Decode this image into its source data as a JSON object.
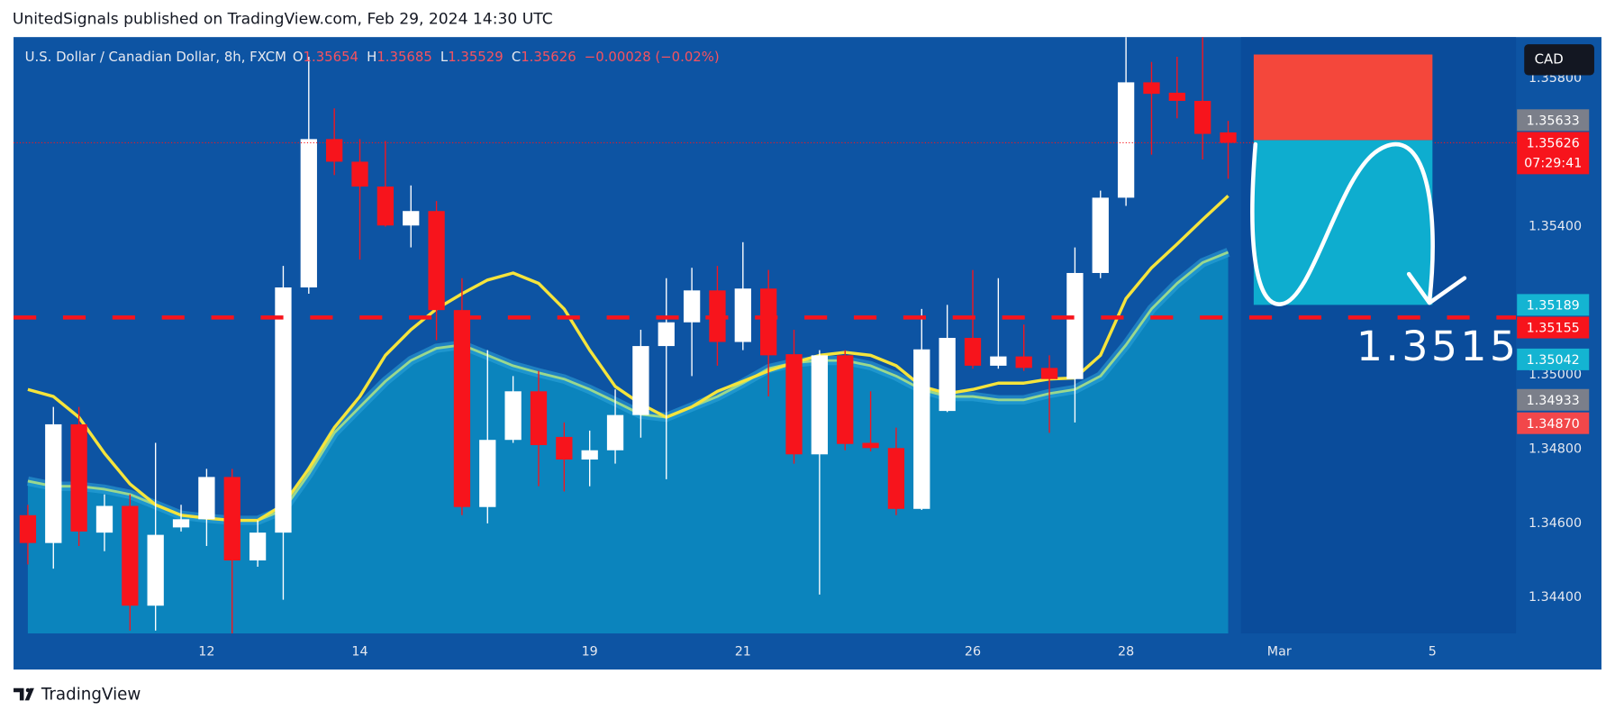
{
  "header": "UnitedSignals published on TradingView.com, Feb 29, 2024 14:30 UTC",
  "footer": "TradingView",
  "chart_data": {
    "type": "candlestick",
    "title": "U.S. Dollar / Canadian Dollar, 8h, FXCM",
    "ohlc_labels": [
      "O",
      "H",
      "L",
      "C"
    ],
    "change": "−0.00028 (−0.02%)",
    "currency": "CAD",
    "up_color": "#ffffff",
    "down_color": "#f7141c",
    "open": [
      1.34622,
      1.34547,
      1.34867,
      1.34575,
      1.34647,
      1.34378,
      1.34589,
      1.34611,
      1.34725,
      1.345,
      1.34575,
      1.35236,
      1.35636,
      1.35575,
      1.35508,
      1.35403,
      1.35442,
      1.35175,
      1.34644,
      1.34825,
      1.34956,
      1.34833,
      1.34772,
      1.34797,
      1.34892,
      1.35078,
      1.35142,
      1.35228,
      1.35089,
      1.35233,
      1.35056,
      1.34786,
      1.35053,
      1.34817,
      1.34803,
      1.34639,
      1.34903,
      1.351,
      1.35025,
      1.3505,
      1.35019,
      1.34989,
      1.35275,
      1.35478,
      1.35789,
      1.35761,
      1.35739,
      1.35654
    ],
    "high": [
      1.3465,
      1.34914,
      1.34914,
      1.34678,
      1.34678,
      1.34817,
      1.3465,
      1.34747,
      1.34747,
      1.34608,
      1.35294,
      1.35858,
      1.35719,
      1.35636,
      1.35631,
      1.35511,
      1.35469,
      1.35261,
      1.35067,
      1.34997,
      1.35011,
      1.34872,
      1.3485,
      1.34961,
      1.35122,
      1.35261,
      1.35289,
      1.35294,
      1.35358,
      1.35283,
      1.35122,
      1.35067,
      1.35067,
      1.34956,
      1.34858,
      1.35178,
      1.35189,
      1.35283,
      1.35261,
      1.35136,
      1.35053,
      1.35344,
      1.35497,
      1.35911,
      1.35844,
      1.35858,
      1.35911,
      1.35685
    ],
    "low": [
      1.34489,
      1.34478,
      1.34539,
      1.34525,
      1.34311,
      1.34311,
      1.34578,
      1.34539,
      1.34303,
      1.34483,
      1.34394,
      1.35219,
      1.35539,
      1.35311,
      1.354,
      1.35344,
      1.35094,
      1.34622,
      1.346,
      1.34817,
      1.347,
      1.34686,
      1.347,
      1.34761,
      1.34831,
      1.34719,
      1.34997,
      1.35025,
      1.35067,
      1.34942,
      1.34761,
      1.34408,
      1.34797,
      1.34794,
      1.34622,
      1.34636,
      1.349,
      1.35017,
      1.35017,
      1.35011,
      1.34844,
      1.34872,
      1.35261,
      1.35456,
      1.35594,
      1.35692,
      1.35581,
      1.35529
    ],
    "close": [
      1.34547,
      1.34867,
      1.34578,
      1.34647,
      1.34378,
      1.34569,
      1.34611,
      1.34725,
      1.345,
      1.34575,
      1.35236,
      1.35636,
      1.35575,
      1.35508,
      1.35403,
      1.35442,
      1.35175,
      1.34644,
      1.34825,
      1.34956,
      1.34811,
      1.34772,
      1.34797,
      1.34892,
      1.35078,
      1.35142,
      1.35228,
      1.35089,
      1.35233,
      1.35053,
      1.34786,
      1.35053,
      1.34814,
      1.34803,
      1.34639,
      1.35069,
      1.351,
      1.35025,
      1.3505,
      1.35019,
      1.34989,
      1.35275,
      1.35478,
      1.35789,
      1.35758,
      1.35739,
      1.3565,
      1.35626
    ],
    "series": [
      {
        "color": "#f5e43c",
        "values": [
          1.34961,
          1.34942,
          1.34886,
          1.34789,
          1.34706,
          1.3465,
          1.34622,
          1.34614,
          1.34608,
          1.34608,
          1.3465,
          1.34747,
          1.34858,
          1.34942,
          1.35053,
          1.35122,
          1.35178,
          1.35219,
          1.35256,
          1.35275,
          1.35247,
          1.35178,
          1.35067,
          1.34969,
          1.34922,
          1.34886,
          1.34914,
          1.34956,
          1.34983,
          1.35011,
          1.35033,
          1.35053,
          1.35061,
          1.35053,
          1.35025,
          1.34969,
          1.3495,
          1.34961,
          1.34978,
          1.34978,
          1.34989,
          1.34992,
          1.35053,
          1.35206,
          1.35289,
          1.35353,
          1.35419,
          1.35483
        ]
      },
      {
        "color": "#9ad88e",
        "fill": "#0b84bd",
        "values": [
          1.34714,
          1.347,
          1.347,
          1.34692,
          1.34678,
          1.3465,
          1.34622,
          1.34614,
          1.34608,
          1.34608,
          1.34636,
          1.34733,
          1.34844,
          1.34914,
          1.34983,
          1.35039,
          1.35072,
          1.35081,
          1.35053,
          1.35025,
          1.35006,
          1.34989,
          1.34961,
          1.34928,
          1.34894,
          1.34886,
          1.34914,
          1.34942,
          1.34978,
          1.35017,
          1.35033,
          1.35039,
          1.35039,
          1.35025,
          1.34997,
          1.34961,
          1.34942,
          1.34942,
          1.34933,
          1.34933,
          1.3495,
          1.34961,
          1.34997,
          1.35081,
          1.35178,
          1.35247,
          1.35303,
          1.35331
        ]
      }
    ],
    "xlim": [
      -0.56,
      58.27
    ],
    "ylim": [
      1.34303,
      1.35911
    ],
    "xticks": [
      {
        "value": 7,
        "label": "12"
      },
      {
        "value": 13,
        "label": "14"
      },
      {
        "value": 22,
        "label": "19"
      },
      {
        "value": 28,
        "label": "21"
      },
      {
        "value": 37,
        "label": "26"
      },
      {
        "value": 43,
        "label": "28"
      },
      {
        "value": 49,
        "label": "Mar"
      },
      {
        "value": 55,
        "label": "5"
      }
    ],
    "yticks": [
      {
        "value": 1.344,
        "label": "1.34400"
      },
      {
        "value": 1.346,
        "label": "1.34600"
      },
      {
        "value": 1.348,
        "label": "1.34800"
      },
      {
        "value": 1.35,
        "label": "1.35000"
      },
      {
        "value": 1.354,
        "label": "1.35400"
      },
      {
        "value": 1.358,
        "label": "1.35800"
      }
    ],
    "price_labels": [
      {
        "value": 1.35633,
        "label": "1.35633",
        "color": "#7b7f8a"
      },
      {
        "value": 1.35626,
        "label": "1.35626",
        "color": "#f7141c",
        "timer": "07:29:41"
      },
      {
        "value": 1.35189,
        "label": "1.35189",
        "color": "#14b4d2"
      },
      {
        "value": 1.35155,
        "label": "1.35155",
        "color": "#f7141c",
        "line": "dashed"
      },
      {
        "value": 1.35042,
        "label": "1.35042",
        "color": "#14b4d2"
      },
      {
        "value": 1.34933,
        "label": "1.34933",
        "color": "#7b7f8a"
      },
      {
        "value": 1.3487,
        "label": "1.34870",
        "color": "#f2474a"
      }
    ],
    "position": {
      "start": 48,
      "end": 55,
      "entry": 1.35633,
      "stop": 1.35864,
      "target": 1.35189,
      "stop_color": "#f4473b",
      "target_color": "#0eadcf"
    },
    "annotation": "1.3515"
  }
}
